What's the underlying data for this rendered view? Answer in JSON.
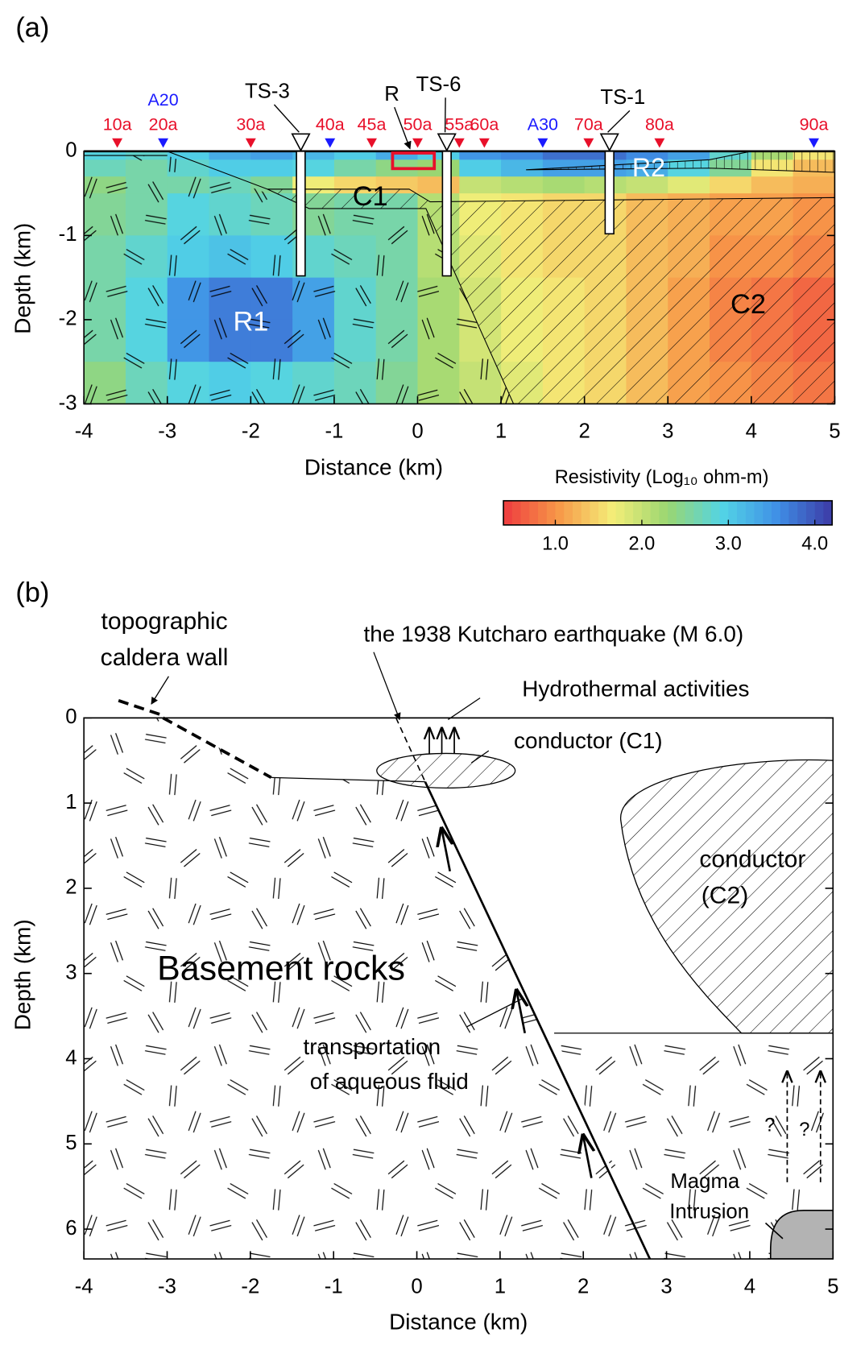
{
  "chart_data": [
    {
      "type": "heatmap",
      "panel_label": "(a)",
      "xlabel": "Distance (km)",
      "ylabel": "Depth (km)",
      "xlim": [
        -4,
        5
      ],
      "ylim": [
        -3,
        0
      ],
      "xticks": [
        -4,
        -3,
        -2,
        -1,
        0,
        1,
        2,
        3,
        4,
        5
      ],
      "yticks": [
        0,
        -1,
        -2,
        -3
      ],
      "x_edges": [
        -4,
        -3.5,
        -3,
        -2.5,
        -2,
        -1.5,
        -1,
        -0.5,
        0,
        0.5,
        1,
        1.5,
        2,
        2.5,
        3,
        3.5,
        4,
        4.5,
        5
      ],
      "y_edges": [
        0,
        -0.1,
        -0.3,
        -0.5,
        -1,
        -1.5,
        -2,
        -2.5,
        -3
      ],
      "values": [
        [
          2.9,
          2.8,
          3.0,
          3.3,
          3.4,
          3.2,
          3.0,
          3.3,
          3.0,
          3.5,
          3.6,
          3.8,
          3.8,
          3.6,
          3.4,
          2.8,
          2.2,
          1.6
        ],
        [
          2.7,
          2.6,
          2.8,
          3.0,
          3.0,
          2.9,
          2.6,
          2.4,
          2.3,
          3.0,
          3.2,
          3.4,
          3.4,
          3.3,
          2.9,
          2.5,
          1.6,
          1.3
        ],
        [
          2.4,
          2.6,
          2.6,
          2.7,
          2.5,
          1.7,
          1.5,
          1.4,
          1.3,
          2.0,
          2.1,
          2.2,
          2.1,
          2.0,
          1.8,
          1.5,
          1.3,
          1.2
        ],
        [
          2.5,
          2.6,
          2.9,
          2.8,
          2.7,
          2.5,
          2.6,
          2.6,
          2.1,
          1.7,
          1.6,
          1.5,
          1.5,
          1.3,
          1.2,
          1.1,
          1.1,
          1.0
        ],
        [
          2.6,
          2.8,
          3.0,
          3.1,
          3.0,
          2.8,
          2.7,
          2.6,
          2.1,
          1.8,
          1.6,
          1.5,
          1.5,
          1.3,
          1.2,
          1.0,
          1.0,
          0.9
        ],
        [
          2.6,
          2.9,
          3.5,
          3.7,
          3.7,
          3.4,
          2.8,
          2.6,
          2.2,
          1.9,
          1.7,
          1.6,
          1.5,
          1.3,
          1.1,
          0.9,
          0.8,
          0.7
        ],
        [
          2.6,
          2.9,
          3.5,
          3.7,
          3.7,
          3.4,
          2.8,
          2.6,
          2.2,
          1.9,
          1.7,
          1.6,
          1.5,
          1.3,
          1.1,
          0.9,
          0.8,
          0.7
        ],
        [
          2.4,
          2.7,
          2.9,
          3.0,
          2.9,
          2.8,
          2.7,
          2.5,
          2.2,
          2.0,
          1.8,
          1.6,
          1.5,
          1.3,
          1.1,
          1.0,
          0.9,
          0.8
        ]
      ],
      "colorbar_title": "Resistivity (Log₁₀ ohm-m)",
      "clim": [
        0.4,
        4.2
      ],
      "cticks": [
        {
          "value": 1,
          "label": "1.0"
        },
        {
          "value": 2,
          "label": "2.0"
        },
        {
          "value": 3,
          "label": "3.0"
        },
        {
          "value": 4,
          "label": "4.0"
        }
      ],
      "colormap": [
        "#ee3b3f",
        "#f79848",
        "#f4ee78",
        "#9ad672",
        "#52d4e6",
        "#3f8fe6",
        "#3d3aa6"
      ],
      "stations": [
        {
          "x": -3.6,
          "color": "#e8102a",
          "labels": [
            {
              "text": "10a",
              "color": "#e8102a"
            }
          ]
        },
        {
          "x": -3.05,
          "color": "#1a1aff",
          "labels": [
            {
              "text": "A20",
              "color": "#1a1aff"
            },
            {
              "text": "20a",
              "color": "#e8102a"
            }
          ]
        },
        {
          "x": -2.0,
          "color": "#e8102a",
          "labels": [
            {
              "text": "30a",
              "color": "#e8102a"
            }
          ]
        },
        {
          "x": -1.05,
          "color": "#1a1aff",
          "labels": [
            {
              "text": "40a",
              "color": "#e8102a"
            }
          ]
        },
        {
          "x": -0.55,
          "color": "#e8102a",
          "labels": [
            {
              "text": "45a",
              "color": "#e8102a"
            }
          ]
        },
        {
          "x": 0.0,
          "color": "#e8102a",
          "labels": [
            {
              "text": "50a",
              "color": "#e8102a"
            }
          ]
        },
        {
          "x": 0.5,
          "color": "#e8102a",
          "labels": [
            {
              "text": "55a",
              "color": "#e8102a"
            }
          ]
        },
        {
          "x": 0.8,
          "color": "#e8102a",
          "labels": [
            {
              "text": "60a",
              "color": "#e8102a"
            }
          ]
        },
        {
          "x": 1.5,
          "color": "#1a1aff",
          "labels": [
            {
              "text": "A30",
              "color": "#1a1aff"
            }
          ]
        },
        {
          "x": 2.05,
          "color": "#e8102a",
          "labels": [
            {
              "text": "70a",
              "color": "#e8102a"
            }
          ]
        },
        {
          "x": 2.9,
          "color": "#e8102a",
          "labels": [
            {
              "text": "80a",
              "color": "#e8102a"
            }
          ]
        },
        {
          "x": 4.75,
          "color": "#1a1aff",
          "labels": [
            {
              "text": "90a",
              "color": "#e8102a"
            }
          ]
        }
      ],
      "wells": [
        {
          "name": "TS-3",
          "x": -1.4,
          "bottom": -1.48
        },
        {
          "name": "TS-6",
          "x": 0.35,
          "bottom": -1.48
        },
        {
          "name": "TS-1",
          "x": 2.3,
          "bottom": -0.98
        }
      ],
      "annotations": {
        "r1": "R1",
        "r2": "R2",
        "c1": "C1",
        "c2": "C2",
        "r": "R"
      }
    },
    {
      "type": "cross-section",
      "panel_label": "(b)",
      "xlabel": "Distance (km)",
      "ylabel": "Depth (km)",
      "xlim": [
        -4,
        5
      ],
      "ylim": [
        0,
        6.35
      ],
      "inverted": true,
      "xticks": [
        -4,
        -3,
        -2,
        -1,
        0,
        1,
        2,
        3,
        4,
        5
      ],
      "yticks": [
        0,
        1,
        2,
        3,
        4,
        5,
        6
      ],
      "annotations": {
        "caldera_wall": [
          "topographic",
          "caldera wall"
        ],
        "earthquake": "the 1938 Kutcharo earthquake (M 6.0)",
        "hydrothermal": "Hydrothermal activities",
        "c1": "conductor (C1)",
        "c2": [
          "conductor",
          "(C2)"
        ],
        "basement": "Basement rocks",
        "fluid": [
          "transportation",
          "of aqueous fluid"
        ],
        "magma": [
          "Magma",
          "Intrusion"
        ],
        "question": [
          "?",
          "?"
        ]
      }
    }
  ]
}
